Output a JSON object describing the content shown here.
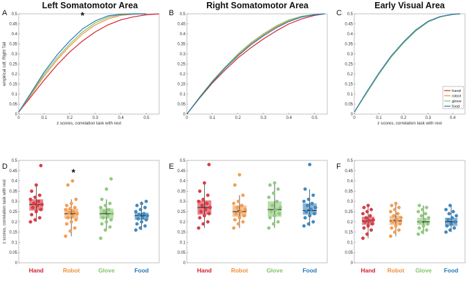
{
  "colors": {
    "hand": "#d0202a",
    "robot": "#f08f3a",
    "glove": "#7fc36a",
    "food": "#2477b4"
  },
  "chart_data": [
    {
      "panel": "A",
      "type": "line",
      "title": "Left Somatomotor Area",
      "significance": "*",
      "xlabel": "z scores, correlation task with rest",
      "ylabel": "empirical cdf, Right Tail",
      "xlim": [
        0,
        0.55
      ],
      "ylim": [
        0,
        0.5
      ],
      "xticks": [
        "0",
        "0.1",
        "0.2",
        "0.3",
        "0.4",
        "0.5"
      ],
      "yticks": [
        "0",
        "0.05",
        "0.1",
        "0.15",
        "0.2",
        "0.25",
        "0.3",
        "0.35",
        "0.4",
        "0.45",
        "0.5"
      ],
      "series": [
        {
          "name": "hand",
          "x": [
            0,
            0.05,
            0.1,
            0.15,
            0.2,
            0.25,
            0.3,
            0.35,
            0.4,
            0.45,
            0.5,
            0.55
          ],
          "values": [
            0.01,
            0.09,
            0.17,
            0.245,
            0.31,
            0.365,
            0.41,
            0.445,
            0.47,
            0.485,
            0.495,
            0.5
          ]
        },
        {
          "name": "robot",
          "x": [
            0,
            0.05,
            0.1,
            0.15,
            0.2,
            0.25,
            0.3,
            0.35,
            0.4,
            0.45,
            0.5
          ],
          "values": [
            0.01,
            0.1,
            0.19,
            0.27,
            0.34,
            0.4,
            0.445,
            0.475,
            0.492,
            0.498,
            0.5
          ]
        },
        {
          "name": "glove",
          "x": [
            0,
            0.05,
            0.1,
            0.15,
            0.2,
            0.25,
            0.3,
            0.35,
            0.4,
            0.45,
            0.5
          ],
          "values": [
            0.01,
            0.105,
            0.2,
            0.28,
            0.35,
            0.41,
            0.455,
            0.483,
            0.496,
            0.5,
            0.5
          ]
        },
        {
          "name": "food",
          "x": [
            0,
            0.05,
            0.1,
            0.15,
            0.2,
            0.25,
            0.3,
            0.35,
            0.4,
            0.45,
            0.5
          ],
          "values": [
            0.01,
            0.11,
            0.21,
            0.295,
            0.365,
            0.425,
            0.465,
            0.49,
            0.498,
            0.5,
            0.5
          ]
        }
      ]
    },
    {
      "panel": "B",
      "type": "line",
      "title": "Right Somatomotor Area",
      "xlim": [
        0,
        0.55
      ],
      "ylim": [
        0,
        0.5
      ],
      "xticks": [
        "0",
        "0.1",
        "0.2",
        "0.3",
        "0.4",
        "0.5"
      ],
      "yticks": [
        "0",
        "0.05",
        "0.1",
        "0.15",
        "0.2",
        "0.25",
        "0.3",
        "0.35",
        "0.4",
        "0.45",
        "0.5"
      ],
      "series": [
        {
          "name": "hand",
          "x": [
            0,
            0.05,
            0.1,
            0.15,
            0.2,
            0.25,
            0.3,
            0.35,
            0.4,
            0.45,
            0.5,
            0.54
          ],
          "values": [
            0.0,
            0.08,
            0.155,
            0.22,
            0.28,
            0.33,
            0.375,
            0.415,
            0.45,
            0.475,
            0.492,
            0.5
          ]
        },
        {
          "name": "robot",
          "x": [
            0,
            0.05,
            0.1,
            0.15,
            0.2,
            0.25,
            0.3,
            0.35,
            0.4,
            0.45,
            0.5,
            0.54
          ],
          "values": [
            0.0,
            0.085,
            0.165,
            0.235,
            0.295,
            0.35,
            0.395,
            0.435,
            0.465,
            0.485,
            0.496,
            0.5
          ]
        },
        {
          "name": "glove",
          "x": [
            0,
            0.05,
            0.1,
            0.15,
            0.2,
            0.25,
            0.3,
            0.35,
            0.4,
            0.45,
            0.5,
            0.54
          ],
          "values": [
            0.0,
            0.085,
            0.165,
            0.235,
            0.3,
            0.355,
            0.4,
            0.44,
            0.47,
            0.488,
            0.497,
            0.5
          ]
        },
        {
          "name": "food",
          "x": [
            0,
            0.05,
            0.1,
            0.15,
            0.2,
            0.25,
            0.3,
            0.35,
            0.4,
            0.45,
            0.5,
            0.54
          ],
          "values": [
            0.0,
            0.082,
            0.16,
            0.23,
            0.29,
            0.345,
            0.39,
            0.43,
            0.462,
            0.484,
            0.495,
            0.5
          ]
        }
      ]
    },
    {
      "panel": "C",
      "type": "line",
      "title": "Early Visual Area",
      "xlabel": "z scores, correlation task with rest",
      "xlim": [
        0,
        0.45
      ],
      "ylim": [
        0,
        0.5
      ],
      "xticks": [
        "0",
        "0.1",
        "0.2",
        "0.3",
        "0.4"
      ],
      "yticks": [
        "0",
        "0.05",
        "0.1",
        "0.15",
        "0.2",
        "0.25",
        "0.3",
        "0.35",
        "0.4",
        "0.45",
        "0.5"
      ],
      "legend": [
        "hand",
        "robot",
        "glove",
        "food"
      ],
      "series": [
        {
          "name": "hand",
          "x": [
            0,
            0.05,
            0.1,
            0.15,
            0.2,
            0.25,
            0.3,
            0.35,
            0.4,
            0.43
          ],
          "values": [
            0.01,
            0.105,
            0.2,
            0.285,
            0.355,
            0.415,
            0.46,
            0.485,
            0.497,
            0.5
          ]
        },
        {
          "name": "robot",
          "x": [
            0,
            0.05,
            0.1,
            0.15,
            0.2,
            0.25,
            0.3,
            0.35,
            0.4,
            0.43
          ],
          "values": [
            0.01,
            0.105,
            0.2,
            0.285,
            0.355,
            0.415,
            0.46,
            0.485,
            0.497,
            0.5
          ]
        },
        {
          "name": "glove",
          "x": [
            0,
            0.05,
            0.1,
            0.15,
            0.2,
            0.25,
            0.3,
            0.35,
            0.4,
            0.43
          ],
          "values": [
            0.01,
            0.105,
            0.2,
            0.285,
            0.355,
            0.415,
            0.46,
            0.485,
            0.497,
            0.5
          ]
        },
        {
          "name": "food",
          "x": [
            0,
            0.05,
            0.1,
            0.15,
            0.2,
            0.25,
            0.3,
            0.35,
            0.4,
            0.43
          ],
          "values": [
            0.01,
            0.11,
            0.205,
            0.29,
            0.36,
            0.42,
            0.463,
            0.487,
            0.498,
            0.5
          ]
        }
      ]
    },
    {
      "panel": "D",
      "type": "box",
      "significance": "*",
      "ylabel": "z scores, correlation task with rest",
      "ylim": [
        0,
        0.5
      ],
      "yticks": [
        "0",
        "0.05",
        "0.1",
        "0.15",
        "0.2",
        "0.25",
        "0.3",
        "0.35",
        "0.4",
        "0.45",
        "0.5"
      ],
      "categories": [
        "Hand",
        "Robot",
        "Glove",
        "Food"
      ],
      "boxes": [
        {
          "q1": 0.255,
          "median": 0.285,
          "q3": 0.31,
          "lo": 0.2,
          "hi": 0.38,
          "mean": 0.285,
          "points": [
            0.2,
            0.21,
            0.22,
            0.235,
            0.25,
            0.26,
            0.27,
            0.28,
            0.285,
            0.29,
            0.3,
            0.31,
            0.32,
            0.33,
            0.35,
            0.38,
            0.475
          ]
        },
        {
          "q1": 0.215,
          "median": 0.24,
          "q3": 0.265,
          "lo": 0.13,
          "hi": 0.31,
          "mean": 0.24,
          "points": [
            0.13,
            0.155,
            0.17,
            0.19,
            0.2,
            0.21,
            0.22,
            0.23,
            0.24,
            0.245,
            0.25,
            0.26,
            0.265,
            0.27,
            0.28,
            0.29,
            0.31,
            0.38,
            0.4
          ]
        },
        {
          "q1": 0.215,
          "median": 0.24,
          "q3": 0.265,
          "lo": 0.16,
          "hi": 0.31,
          "mean": 0.24,
          "points": [
            0.12,
            0.16,
            0.175,
            0.19,
            0.2,
            0.21,
            0.22,
            0.23,
            0.24,
            0.25,
            0.26,
            0.27,
            0.28,
            0.29,
            0.31,
            0.36,
            0.41
          ]
        },
        {
          "q1": 0.21,
          "median": 0.23,
          "q3": 0.245,
          "lo": 0.16,
          "hi": 0.3,
          "mean": 0.23,
          "points": [
            0.16,
            0.17,
            0.18,
            0.19,
            0.2,
            0.21,
            0.215,
            0.22,
            0.23,
            0.235,
            0.24,
            0.25,
            0.26,
            0.27,
            0.28,
            0.29,
            0.3
          ]
        }
      ]
    },
    {
      "panel": "E",
      "type": "box",
      "ylim": [
        0,
        0.5
      ],
      "yticks": [
        "0",
        "0.05",
        "0.1",
        "0.15",
        "0.2",
        "0.25",
        "0.3",
        "0.35",
        "0.4",
        "0.45",
        "0.5"
      ],
      "categories": [
        "Hand",
        "Robot",
        "Glove",
        "Food"
      ],
      "boxes": [
        {
          "q1": 0.235,
          "median": 0.27,
          "q3": 0.305,
          "lo": 0.17,
          "hi": 0.39,
          "mean": 0.27,
          "points": [
            0.17,
            0.19,
            0.2,
            0.22,
            0.23,
            0.24,
            0.25,
            0.26,
            0.27,
            0.28,
            0.29,
            0.3,
            0.31,
            0.33,
            0.35,
            0.39,
            0.48
          ]
        },
        {
          "q1": 0.225,
          "median": 0.25,
          "q3": 0.28,
          "lo": 0.17,
          "hi": 0.33,
          "mean": 0.255,
          "points": [
            0.17,
            0.19,
            0.2,
            0.21,
            0.22,
            0.23,
            0.24,
            0.25,
            0.26,
            0.27,
            0.28,
            0.29,
            0.3,
            0.33,
            0.38,
            0.43
          ]
        },
        {
          "q1": 0.225,
          "median": 0.26,
          "q3": 0.3,
          "lo": 0.17,
          "hi": 0.39,
          "mean": 0.26,
          "points": [
            0.17,
            0.19,
            0.2,
            0.22,
            0.23,
            0.24,
            0.25,
            0.26,
            0.27,
            0.28,
            0.3,
            0.32,
            0.34,
            0.36,
            0.38,
            0.39
          ]
        },
        {
          "q1": 0.235,
          "median": 0.255,
          "q3": 0.29,
          "lo": 0.18,
          "hi": 0.36,
          "mean": 0.26,
          "points": [
            0.18,
            0.19,
            0.2,
            0.22,
            0.23,
            0.24,
            0.25,
            0.26,
            0.27,
            0.28,
            0.29,
            0.3,
            0.31,
            0.33,
            0.36,
            0.48
          ]
        }
      ]
    },
    {
      "panel": "F",
      "type": "box",
      "ylim": [
        0,
        0.5
      ],
      "yticks": [
        "0",
        "0.05",
        "0.1",
        "0.15",
        "0.2",
        "0.25",
        "0.3",
        "0.35",
        "0.4",
        "0.45",
        "0.5"
      ],
      "categories": [
        "Hand",
        "Robot",
        "Glove",
        "Food"
      ],
      "boxes": [
        {
          "q1": 0.185,
          "median": 0.205,
          "q3": 0.225,
          "lo": 0.12,
          "hi": 0.28,
          "mean": 0.205,
          "points": [
            0.12,
            0.14,
            0.16,
            0.17,
            0.18,
            0.19,
            0.2,
            0.205,
            0.21,
            0.22,
            0.23,
            0.24,
            0.25,
            0.26,
            0.27,
            0.28
          ]
        },
        {
          "q1": 0.185,
          "median": 0.205,
          "q3": 0.23,
          "lo": 0.13,
          "hi": 0.29,
          "mean": 0.21,
          "points": [
            0.13,
            0.15,
            0.16,
            0.17,
            0.18,
            0.19,
            0.2,
            0.21,
            0.22,
            0.23,
            0.24,
            0.25,
            0.26,
            0.27,
            0.28,
            0.29
          ]
        },
        {
          "q1": 0.185,
          "median": 0.2,
          "q3": 0.22,
          "lo": 0.14,
          "hi": 0.28,
          "mean": 0.2,
          "points": [
            0.14,
            0.15,
            0.16,
            0.17,
            0.18,
            0.19,
            0.2,
            0.21,
            0.22,
            0.23,
            0.24,
            0.25,
            0.26,
            0.27,
            0.28
          ]
        },
        {
          "q1": 0.18,
          "median": 0.2,
          "q3": 0.22,
          "lo": 0.15,
          "hi": 0.28,
          "mean": 0.2,
          "points": [
            0.15,
            0.16,
            0.17,
            0.18,
            0.19,
            0.2,
            0.21,
            0.22,
            0.23,
            0.24,
            0.25,
            0.26,
            0.28
          ]
        }
      ]
    }
  ]
}
